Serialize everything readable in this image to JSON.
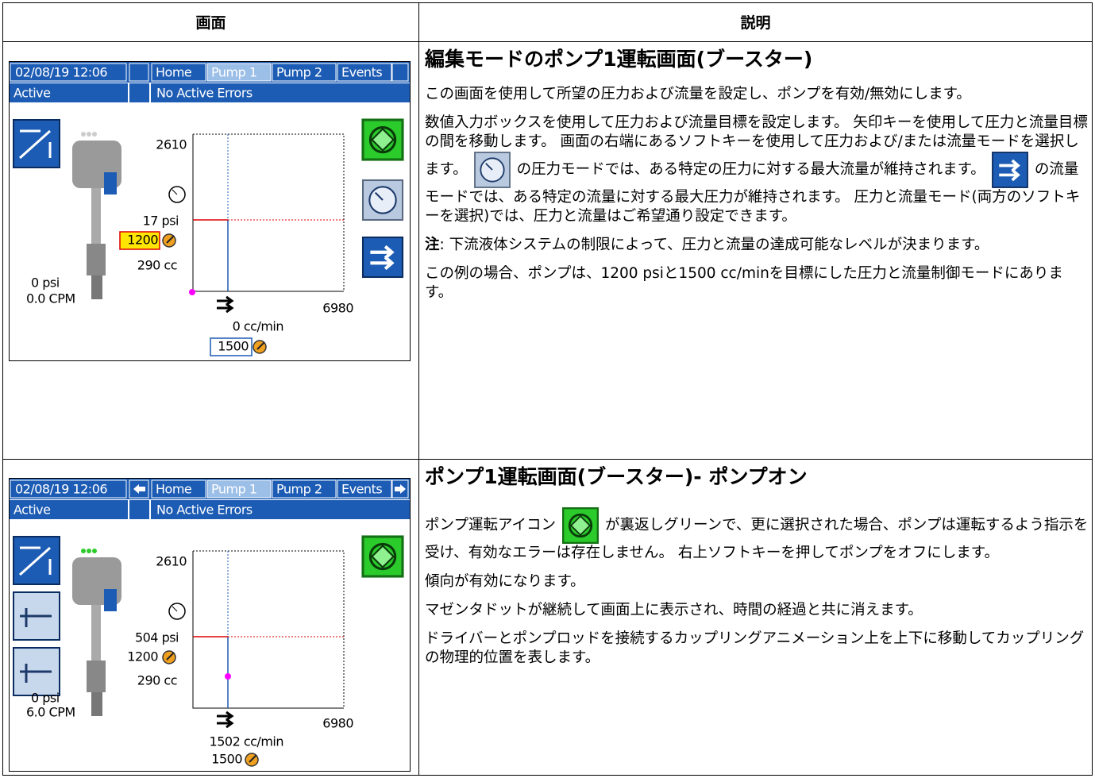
{
  "table": {
    "headers": [
      "画面",
      "説明"
    ],
    "rows": [
      {
        "screen": {
          "datetime": "02/08/19 12:06",
          "tabs": [
            "Home",
            "Pump 1",
            "Pump 2",
            "Events"
          ],
          "status": "Active",
          "errors": "No Active Errors",
          "pressure_max": "2610",
          "flow_max": "6980",
          "pressure": "17 psi",
          "pressure_target": "1200",
          "volume": "290 cc",
          "outlet_pressure": "0 psi",
          "cycle_rate": "0.0 CPM",
          "flow": "0 cc/min",
          "flow_target": "1500"
        },
        "description": {
          "title": "編集モードのポンプ1運転画面(ブースター)",
          "paragraphs": [
            [
              "この画面を使用して所望の圧力および流量を設定し、ポンプを有効/無効にします。"
            ],
            [
              "数値入力ボックスを使用して圧力および流量目標を設定します。 矢印キーを使用して圧力と流量目標の間を移動します。 画面の右端にあるソフトキーを使用して圧力および/または流量モードを選択します。",
              "の圧力モードでは、ある特定の圧力に対する最大流量が維持されます。",
              "の流量モードでは、ある特定の流量に対する最大圧力が維持されます。 圧力と流量モード(両方のソフトキーを選択)では、圧力と流量はご希望通り設定できます。"
            ],
            [
              "注",
              ": 下流液体システムの制限によって、圧力と流量の達成可能なレベルが決まります。"
            ],
            [
              "この例の場合、ポンプは、1200 psiと1500 cc/minを目標にした圧力と流量制御モードにあります。"
            ]
          ]
        }
      },
      {
        "screen": {
          "datetime": "02/08/19 12:06",
          "tabs": [
            "Home",
            "Pump 1",
            "Pump 2",
            "Events"
          ],
          "status": "Active",
          "errors": "No Active Errors",
          "pressure_max": "2610",
          "flow_max": "6980",
          "pressure": "504 psi",
          "pressure_target": "1200",
          "volume": "290 cc",
          "outlet_pressure": "0 psi",
          "cycle_rate": "6.0 CPM",
          "flow": "1502 cc/min",
          "flow_target": "1500"
        },
        "description": {
          "title": "ポンプ1運転画面(ブースター)- ポンプオン",
          "paragraphs": [
            [
              "ポンプ運転アイコン",
              "が裏返しグリーンで、更に選択された場合、ポンプは運転するよう指示を受け、有効なエラーは存在しません。 右上ソフトキーを押してポンプをオフにします。"
            ],
            [
              "傾向が有効になります。"
            ],
            [
              "マゼンタドットが継続して画面上に表示され、時間の経過と共に消えます。"
            ],
            [
              "ドライバーとポンプロッドを接続するカップリングアニメーション上を上下に移動してカップリングの物理的位置を表します。"
            ]
          ]
        }
      }
    ]
  }
}
